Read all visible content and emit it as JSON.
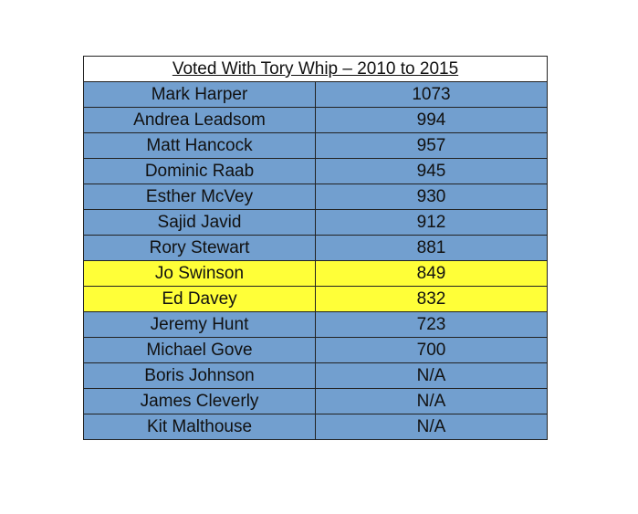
{
  "title": "Voted With Tory Whip – 2010 to 2015",
  "colors": {
    "default_row": "#729fcf",
    "highlight_row": "#ffff38"
  },
  "rows": [
    {
      "name": "Mark Harper",
      "votes": "1073",
      "highlighted": false
    },
    {
      "name": "Andrea Leadsom",
      "votes": "994",
      "highlighted": false
    },
    {
      "name": "Matt Hancock",
      "votes": "957",
      "highlighted": false
    },
    {
      "name": "Dominic Raab",
      "votes": "945",
      "highlighted": false
    },
    {
      "name": "Esther McVey",
      "votes": "930",
      "highlighted": false
    },
    {
      "name": "Sajid Javid",
      "votes": "912",
      "highlighted": false
    },
    {
      "name": "Rory Stewart",
      "votes": "881",
      "highlighted": false
    },
    {
      "name": "Jo Swinson",
      "votes": "849",
      "highlighted": true
    },
    {
      "name": "Ed Davey",
      "votes": "832",
      "highlighted": true
    },
    {
      "name": "Jeremy Hunt",
      "votes": "723",
      "highlighted": false
    },
    {
      "name": "Michael Gove",
      "votes": "700",
      "highlighted": false
    },
    {
      "name": "Boris Johnson",
      "votes": "N/A",
      "highlighted": false
    },
    {
      "name": "James Cleverly",
      "votes": "N/A",
      "highlighted": false
    },
    {
      "name": "Kit Malthouse",
      "votes": "N/A",
      "highlighted": false
    }
  ]
}
